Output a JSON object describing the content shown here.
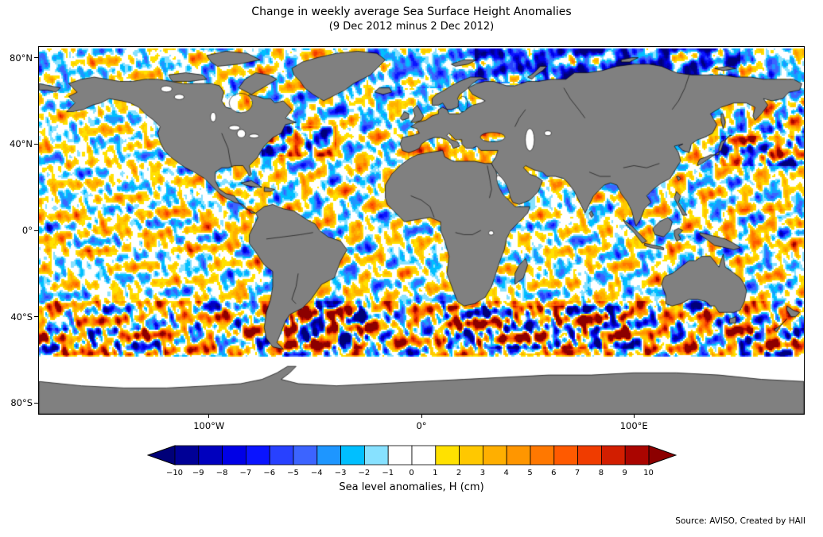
{
  "figure": {
    "title": "Change in weekly average Sea Surface Height Anomalies",
    "subtitle": "(9 Dec 2012 minus 2 Dec 2012)",
    "source_credit": "Source: AVISO, Created by HAII"
  },
  "chart_data": {
    "type": "heatmap",
    "title": "Change in weekly average Sea Surface Height Anomalies",
    "subtitle": "(9 Dec 2012 minus 2 Dec 2012)",
    "projection": "equirectangular world map",
    "extent": {
      "lon": [
        -180,
        180
      ],
      "lat": [
        -85,
        85
      ]
    },
    "x_axis": {
      "tick_labels": [
        "100°W",
        "0°",
        "100°E"
      ],
      "tick_lons": [
        -100,
        0,
        100
      ]
    },
    "y_axis": {
      "tick_labels": [
        "80°N",
        "40°N",
        "0°",
        "40°S",
        "80°S"
      ],
      "tick_lats": [
        80,
        40,
        0,
        -40,
        -80
      ]
    },
    "land_color": "#808080",
    "no_data_color": "#FFFFFF",
    "coastline_color": "#000000",
    "colorbar": {
      "label": "Sea level anomalies, H (cm)",
      "units": "cm",
      "tick_labels": [
        "−10",
        "−9",
        "−8",
        "−7",
        "−6",
        "−5",
        "−4",
        "−3",
        "−2",
        "−1",
        "0",
        "1",
        "2",
        "3",
        "4",
        "5",
        "6",
        "7",
        "8",
        "9",
        "10"
      ],
      "tick_values": [
        -10,
        -9,
        -8,
        -7,
        -6,
        -5,
        -4,
        -3,
        -2,
        -1,
        0,
        1,
        2,
        3,
        4,
        5,
        6,
        7,
        8,
        9,
        10
      ],
      "segment_colors": [
        "#000096",
        "#0000BE",
        "#0000E6",
        "#0A14FF",
        "#2841FF",
        "#3C64FF",
        "#1E96FF",
        "#00BFFF",
        "#87E1FF",
        "#FFFFFF",
        "#FFFFFF",
        "#FFE100",
        "#FFC800",
        "#FFAF00",
        "#FF9600",
        "#FF7800",
        "#FF5A00",
        "#F03C00",
        "#D21E00",
        "#AA0500"
      ],
      "arrow_left_color": "#000078",
      "arrow_right_color": "#8C0000"
    },
    "description": "Weekly difference of sea surface height anomalies (9 Dec 2012 minus 2 Dec 2012). Small-scale positive (yellow to red) and negative (cyan to blue) patches cover all ocean basins; strong negative anomalies across the Arctic Ocean north of Siberia and the Nordic seas; energetic mixed anomalies along western boundary currents (Gulf Stream, Kuroshio, Agulhas, Brazil–Malvinas) and the Antarctic Circumpolar Current; predominantly weak positive (yellow) anomalies in Southern Ocean mid-latitudes and the Mediterranean; white is near-zero change or no data; land is gray."
  }
}
